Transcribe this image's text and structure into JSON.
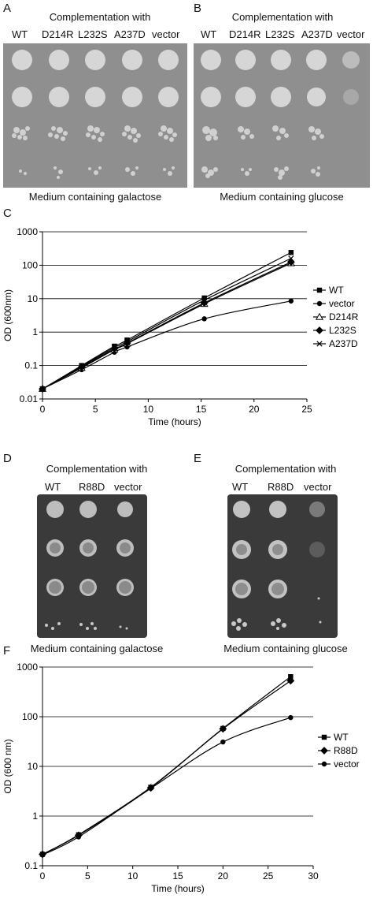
{
  "panelA": {
    "letter": "A",
    "title": "Complementation with",
    "columns": [
      "WT",
      "D214R",
      "L232S",
      "A237D",
      "vector"
    ],
    "caption": "Medium containing galactose"
  },
  "panelB": {
    "letter": "B",
    "title": "Complementation with",
    "columns": [
      "WT",
      "D214R",
      "L232S",
      "A237D",
      "vector"
    ],
    "caption": "Medium containing glucose"
  },
  "panelD": {
    "letter": "D",
    "title": "Complementation with",
    "columns": [
      "WT",
      "R88D",
      "vector"
    ],
    "caption": "Medium containing galactose"
  },
  "panelE": {
    "letter": "E",
    "title": "Complementation with",
    "columns": [
      "WT",
      "R88D",
      "vector"
    ],
    "caption": "Medium containing glucose"
  },
  "chart_data": [
    {
      "panel": "C",
      "type": "line",
      "xlabel": "Time (hours)",
      "ylabel": "OD (600nm)",
      "xlim": [
        0,
        25
      ],
      "ylim": [
        0.01,
        1000
      ],
      "yscale": "log",
      "xticks": [
        "0",
        "5",
        "10",
        "15",
        "20",
        "25"
      ],
      "yticks": [
        "0.01",
        "0.1",
        "1",
        "10",
        "100",
        "1000"
      ],
      "grid": "horizontal",
      "legend_position": "right",
      "series": [
        {
          "name": "WT",
          "marker": "square",
          "x": [
            0,
            3.7,
            6.8,
            8.0,
            15.3,
            23.5
          ],
          "y": [
            0.02,
            0.1,
            0.38,
            0.58,
            10.5,
            240
          ]
        },
        {
          "name": "vector",
          "marker": "circle",
          "x": [
            0,
            3.7,
            6.8,
            8.0,
            15.3,
            23.5
          ],
          "y": [
            0.02,
            0.075,
            0.25,
            0.36,
            2.5,
            8.5
          ]
        },
        {
          "name": "D214R",
          "marker": "triangle",
          "x": [
            0,
            3.7,
            6.8,
            8.0,
            15.3,
            23.5
          ],
          "y": [
            0.02,
            0.085,
            0.3,
            0.45,
            7.0,
            115
          ]
        },
        {
          "name": "L232S",
          "marker": "diamond",
          "x": [
            0,
            3.7,
            6.8,
            8.0,
            15.3,
            23.5
          ],
          "y": [
            0.02,
            0.09,
            0.32,
            0.47,
            7.5,
            125
          ]
        },
        {
          "name": "A237D",
          "marker": "x",
          "x": [
            0,
            3.7,
            6.8,
            8.0,
            15.3,
            23.5
          ],
          "y": [
            0.02,
            0.095,
            0.35,
            0.52,
            9.0,
            160
          ]
        }
      ]
    },
    {
      "panel": "F",
      "type": "line",
      "xlabel": "Time (hours)",
      "ylabel": "OD (600 nm)",
      "xlim": [
        0,
        30
      ],
      "ylim": [
        0.1,
        1000
      ],
      "yscale": "log",
      "xticks": [
        "0",
        "5",
        "10",
        "15",
        "20",
        "25",
        "30"
      ],
      "yticks": [
        "0.1",
        "1",
        "10",
        "100",
        "1000"
      ],
      "grid": "horizontal",
      "legend_position": "right",
      "series": [
        {
          "name": "WT",
          "marker": "square",
          "x": [
            0,
            4,
            12,
            20,
            27.5
          ],
          "y": [
            0.17,
            0.42,
            3.8,
            58,
            640
          ]
        },
        {
          "name": "R88D",
          "marker": "diamond",
          "x": [
            0,
            4,
            12,
            20,
            27.5
          ],
          "y": [
            0.17,
            0.41,
            3.7,
            57,
            530
          ]
        },
        {
          "name": "vector",
          "marker": "circle",
          "x": [
            0,
            4,
            12,
            20,
            27.5
          ],
          "y": [
            0.165,
            0.38,
            3.6,
            31,
            96
          ]
        }
      ]
    }
  ]
}
